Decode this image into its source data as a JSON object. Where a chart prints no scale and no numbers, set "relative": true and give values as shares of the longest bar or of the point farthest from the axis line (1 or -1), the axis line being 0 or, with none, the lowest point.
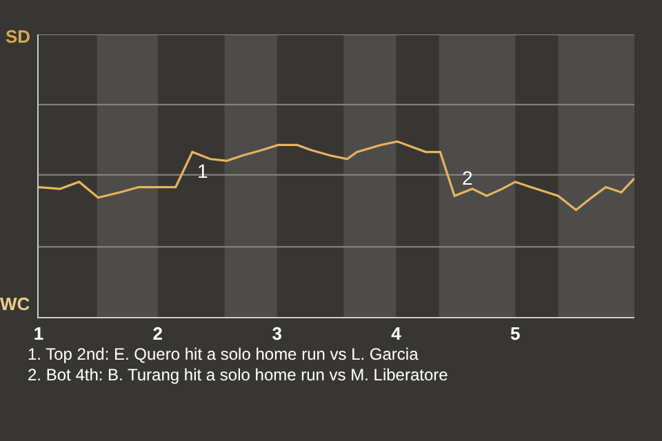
{
  "chart_data": {
    "type": "line",
    "x": [
      1,
      1.18,
      1.34,
      1.5,
      1.68,
      1.84,
      2,
      2.15,
      2.29,
      2.44,
      2.58,
      2.71,
      2.87,
      3.01,
      3.17,
      3.29,
      3.45,
      3.59,
      3.67,
      3.87,
      4.01,
      4.13,
      4.25,
      4.37,
      4.49,
      4.64,
      4.76,
      4.89,
      5,
      5.13,
      5.36,
      5.51,
      5.64,
      5.76,
      5.89,
      6
    ],
    "series": [
      {
        "color": "#e6b45e",
        "values": [
          0.74,
          0.73,
          0.77,
          0.68,
          0.71,
          0.74,
          0.74,
          0.74,
          0.94,
          0.9,
          0.89,
          0.92,
          0.95,
          0.98,
          0.98,
          0.95,
          0.92,
          0.9,
          0.94,
          0.98,
          1,
          0.97,
          0.94,
          0.94,
          0.69,
          0.73,
          0.69,
          0.73,
          0.77,
          0.74,
          0.69,
          0.61,
          0.68,
          0.74,
          0.71,
          0.79
        ]
      }
    ],
    "relative": true,
    "xlim": [
      1,
      6
    ],
    "xticks": [
      1,
      2,
      3,
      4,
      5
    ],
    "ref_lines": [
      {
        "axis": "y",
        "value": 0.4,
        "color": "#8a8886"
      },
      {
        "axis": "y",
        "value": 0.81,
        "color": "#8a8886"
      },
      {
        "axis": "y",
        "value": 1.21,
        "color": "#8a8886"
      },
      {
        "axis": "y",
        "value": 1.61,
        "color": "#8a8886"
      }
    ],
    "marker": "none",
    "line_style": "solid",
    "bands": [
      {
        "axis": "x",
        "from": 1.49,
        "to": 2,
        "color": "#4d4c4a"
      },
      {
        "axis": "x",
        "from": 2.56,
        "to": 3,
        "color": "#4d4c4a"
      },
      {
        "axis": "x",
        "from": 3.56,
        "to": 4,
        "color": "#4d4c4a"
      },
      {
        "axis": "x",
        "from": 4.36,
        "to": 5,
        "color": "#4d4c4a"
      },
      {
        "axis": "x",
        "from": 5.36,
        "to": 6,
        "color": "#4d4c4a"
      }
    ],
    "annotations": [
      "SD",
      "WC",
      {
        "text": "1",
        "x": 2.29,
        "y": 0.94
      },
      {
        "text": "2",
        "x": 4.49,
        "y": 0.69
      },
      "1. Top 2nd: E. Quero hit a solo home run vs L. Garcia",
      "2. Bot 4th: B. Turang hit a solo home run vs M. Liberatore"
    ]
  }
}
